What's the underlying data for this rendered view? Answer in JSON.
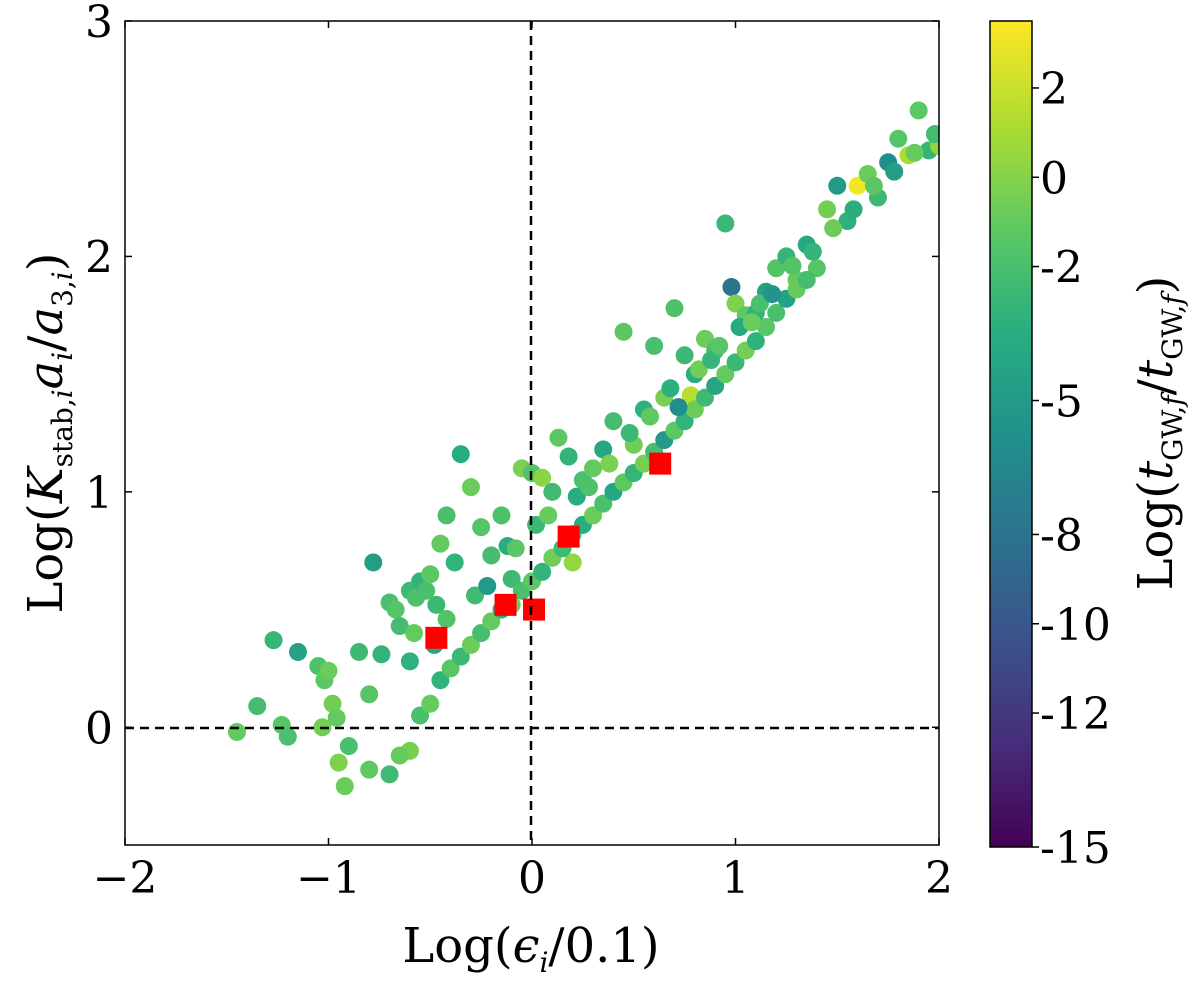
{
  "chart_data": {
    "type": "scatter",
    "xlabel": "Log(ϵi/0.1)",
    "ylabel": "Log(Kstab,iai/a3,i)",
    "xlim": [
      -2,
      2
    ],
    "ylim": [
      -0.5,
      3
    ],
    "xticks": [
      -2,
      -1,
      0,
      1,
      2
    ],
    "yticks": [
      0,
      1,
      2,
      3
    ],
    "xtick_labels": [
      "−2",
      "−1",
      "0",
      "1",
      "2"
    ],
    "ytick_labels": [
      "0",
      "1",
      "2",
      "3"
    ],
    "reference_lines": {
      "vertical_x": 0,
      "horizontal_y": 0,
      "style": "dashed"
    },
    "colorbar": {
      "label": "Log(tGW,f/tGW,f)",
      "range": [
        -15,
        3.5
      ],
      "ticks": [
        2,
        0,
        -2,
        -5,
        -8,
        -10,
        -12,
        -15
      ],
      "tick_labels": [
        "2",
        "0",
        "-2",
        "-5",
        "-8",
        "-10",
        "-12",
        "-15"
      ],
      "colormap": "viridis"
    },
    "series": [
      {
        "name": "simulated systems (circles, colored by colorbar)",
        "marker": "circle",
        "points": [
          [
            -1.45,
            -0.02,
            -1.0
          ],
          [
            -1.35,
            0.09,
            -2.2
          ],
          [
            -1.27,
            0.37,
            -2.8
          ],
          [
            -1.23,
            0.01,
            -1.5
          ],
          [
            -1.2,
            -0.04,
            -2.0
          ],
          [
            -1.15,
            0.32,
            -4.5
          ],
          [
            -1.05,
            0.26,
            -1.8
          ],
          [
            -1.03,
            0.0,
            -0.5
          ],
          [
            -1.02,
            0.2,
            -1.2
          ],
          [
            -1.0,
            0.24,
            -0.8
          ],
          [
            -0.98,
            0.1,
            -0.6
          ],
          [
            -0.96,
            0.04,
            -1.0
          ],
          [
            -0.95,
            -0.15,
            -0.2
          ],
          [
            -0.92,
            -0.25,
            -0.8
          ],
          [
            -0.9,
            -0.08,
            -2.0
          ],
          [
            -0.85,
            0.32,
            -2.5
          ],
          [
            -0.8,
            0.14,
            -1.5
          ],
          [
            -0.78,
            0.7,
            -4.8
          ],
          [
            -0.74,
            0.31,
            -3.0
          ],
          [
            -0.7,
            0.53,
            -2.0
          ],
          [
            -0.67,
            0.5,
            -1.5
          ],
          [
            -0.65,
            0.43,
            -2.2
          ],
          [
            -0.6,
            0.58,
            -2.5
          ],
          [
            -0.57,
            0.55,
            -1.8
          ],
          [
            -0.55,
            0.62,
            -3.0
          ],
          [
            -0.52,
            0.58,
            -2.0
          ],
          [
            -0.5,
            0.65,
            -1.2
          ],
          [
            -0.47,
            0.52,
            -2.6
          ],
          [
            -0.45,
            0.78,
            -1.0
          ],
          [
            -0.42,
            0.9,
            -2.0
          ],
          [
            -0.38,
            0.7,
            -3.0
          ],
          [
            -0.35,
            1.16,
            -3.5
          ],
          [
            -0.3,
            1.02,
            -0.8
          ],
          [
            -0.25,
            0.85,
            -1.5
          ],
          [
            -0.2,
            0.73,
            -2.2
          ],
          [
            -0.15,
            0.9,
            -1.8
          ],
          [
            -0.12,
            0.77,
            -3.5
          ],
          [
            -0.1,
            0.63,
            -2.5
          ],
          [
            -0.05,
            1.1,
            -0.3
          ],
          [
            0.0,
            1.08,
            -1.6
          ],
          [
            0.05,
            1.06,
            0.2
          ],
          [
            0.1,
            1.0,
            -2.4
          ],
          [
            0.13,
            1.23,
            -1.2
          ],
          [
            0.18,
            1.15,
            -3.0
          ],
          [
            0.2,
            0.7,
            0.4
          ],
          [
            0.25,
            1.05,
            -2.0
          ],
          [
            0.3,
            1.1,
            -1.0
          ],
          [
            0.35,
            1.18,
            -4.0
          ],
          [
            0.4,
            1.3,
            -2.2
          ],
          [
            0.45,
            1.68,
            -1.3
          ],
          [
            0.5,
            1.2,
            -0.6
          ],
          [
            0.55,
            1.35,
            -3.2
          ],
          [
            0.6,
            1.62,
            -2.0
          ],
          [
            0.65,
            1.4,
            -0.4
          ],
          [
            0.7,
            1.78,
            -1.8
          ],
          [
            0.75,
            1.58,
            -2.6
          ],
          [
            0.78,
            1.41,
            1.5
          ],
          [
            0.8,
            1.5,
            -3.5
          ],
          [
            0.85,
            1.65,
            -0.8
          ],
          [
            0.9,
            1.6,
            -2.2
          ],
          [
            0.95,
            2.14,
            -2.6
          ],
          [
            0.98,
            1.87,
            -8.0
          ],
          [
            1.0,
            1.8,
            -0.2
          ],
          [
            1.05,
            1.75,
            -1.2
          ],
          [
            1.1,
            1.76,
            -3.0
          ],
          [
            1.15,
            1.85,
            -4.5
          ],
          [
            1.2,
            1.95,
            -1.6
          ],
          [
            1.25,
            2.0,
            -2.8
          ],
          [
            1.3,
            1.9,
            -0.9
          ],
          [
            1.35,
            2.05,
            -4.0
          ],
          [
            1.4,
            1.95,
            -1.5
          ],
          [
            1.45,
            2.2,
            -0.5
          ],
          [
            1.5,
            2.3,
            -5.0
          ],
          [
            1.55,
            2.15,
            -3.2
          ],
          [
            1.6,
            2.3,
            3.2
          ],
          [
            1.65,
            2.35,
            -0.8
          ],
          [
            1.7,
            2.25,
            -2.5
          ],
          [
            1.75,
            2.4,
            -6.0
          ],
          [
            1.8,
            2.5,
            -1.5
          ],
          [
            1.85,
            2.43,
            1.2
          ],
          [
            1.9,
            2.62,
            -1.2
          ],
          [
            1.95,
            2.45,
            -2.8
          ],
          [
            2.0,
            2.47,
            0.3
          ],
          [
            -0.6,
            -0.1,
            -0.4
          ],
          [
            -0.55,
            0.05,
            -2.0
          ],
          [
            -0.5,
            0.1,
            -0.9
          ],
          [
            -0.45,
            0.2,
            -3.0
          ],
          [
            -0.4,
            0.25,
            -1.4
          ],
          [
            -0.35,
            0.3,
            -2.6
          ],
          [
            -0.3,
            0.35,
            -0.7
          ],
          [
            -0.25,
            0.4,
            -2.2
          ],
          [
            -0.2,
            0.45,
            -1.0
          ],
          [
            -0.15,
            0.5,
            -3.4
          ],
          [
            -0.1,
            0.52,
            -0.5
          ],
          [
            -0.05,
            0.58,
            -2.0
          ],
          [
            0.0,
            0.62,
            -1.2
          ],
          [
            0.05,
            0.66,
            -3.0
          ],
          [
            0.1,
            0.72,
            -0.6
          ],
          [
            0.15,
            0.76,
            -2.4
          ],
          [
            0.2,
            0.82,
            -1.5
          ],
          [
            0.25,
            0.86,
            -3.5
          ],
          [
            0.3,
            0.9,
            -0.8
          ],
          [
            0.35,
            0.95,
            -2.0
          ],
          [
            0.4,
            1.0,
            -4.0
          ],
          [
            0.45,
            1.04,
            -1.1
          ],
          [
            0.5,
            1.08,
            -2.8
          ],
          [
            0.55,
            1.12,
            -0.4
          ],
          [
            0.6,
            1.17,
            -2.2
          ],
          [
            0.65,
            1.22,
            -5.0
          ],
          [
            0.7,
            1.26,
            -1.2
          ],
          [
            0.75,
            1.3,
            -3.0
          ],
          [
            0.8,
            1.35,
            -0.7
          ],
          [
            0.85,
            1.4,
            -2.4
          ],
          [
            0.9,
            1.45,
            -4.2
          ],
          [
            0.95,
            1.5,
            -1.0
          ],
          [
            1.0,
            1.55,
            -2.6
          ],
          [
            1.05,
            1.6,
            -0.5
          ],
          [
            1.1,
            1.64,
            -3.2
          ],
          [
            1.15,
            1.7,
            -1.4
          ],
          [
            1.2,
            1.76,
            -2.0
          ],
          [
            1.25,
            1.82,
            -4.5
          ],
          [
            1.3,
            1.86,
            -0.9
          ],
          [
            1.35,
            1.9,
            -2.2
          ],
          [
            -0.8,
            -0.18,
            -1.1
          ],
          [
            -0.7,
            -0.2,
            -2.4
          ],
          [
            -0.65,
            -0.12,
            -0.9
          ],
          [
            -0.6,
            0.28,
            -3.2
          ],
          [
            -0.58,
            0.4,
            -1.0
          ],
          [
            -0.48,
            0.35,
            -4.0
          ],
          [
            -0.42,
            0.46,
            -1.6
          ],
          [
            -0.28,
            0.56,
            -2.4
          ],
          [
            -0.22,
            0.6,
            -5.0
          ],
          [
            -0.08,
            0.76,
            -1.3
          ],
          [
            0.02,
            0.86,
            -2.5
          ],
          [
            0.08,
            0.9,
            -0.9
          ],
          [
            0.22,
            0.98,
            -3.6
          ],
          [
            0.28,
            1.02,
            -1.8
          ],
          [
            0.38,
            1.12,
            -0.3
          ],
          [
            0.48,
            1.25,
            -2.6
          ],
          [
            0.58,
            1.32,
            -1.1
          ],
          [
            0.68,
            1.44,
            -3.3
          ],
          [
            0.72,
            1.36,
            -6.0
          ],
          [
            0.82,
            1.52,
            -0.6
          ],
          [
            0.88,
            1.56,
            -2.8
          ],
          [
            0.92,
            1.62,
            -1.4
          ],
          [
            1.02,
            1.7,
            -3.8
          ],
          [
            1.08,
            1.72,
            -0.8
          ],
          [
            1.12,
            1.8,
            -2.0
          ],
          [
            1.18,
            1.84,
            -5.5
          ],
          [
            1.28,
            1.96,
            -1.6
          ],
          [
            1.38,
            2.02,
            -2.9
          ],
          [
            1.48,
            2.12,
            -0.7
          ],
          [
            1.58,
            2.2,
            -3.4
          ],
          [
            1.68,
            2.3,
            -1.3
          ],
          [
            1.78,
            2.36,
            -4.6
          ],
          [
            1.88,
            2.44,
            -0.9
          ],
          [
            1.98,
            2.52,
            -2.3
          ]
        ]
      },
      {
        "name": "highlighted systems (red squares)",
        "marker": "square",
        "color": "#ff0000",
        "points": [
          [
            -0.47,
            0.38
          ],
          [
            -0.13,
            0.52
          ],
          [
            0.01,
            0.5
          ],
          [
            0.18,
            0.81
          ],
          [
            0.63,
            1.12
          ]
        ]
      }
    ]
  }
}
